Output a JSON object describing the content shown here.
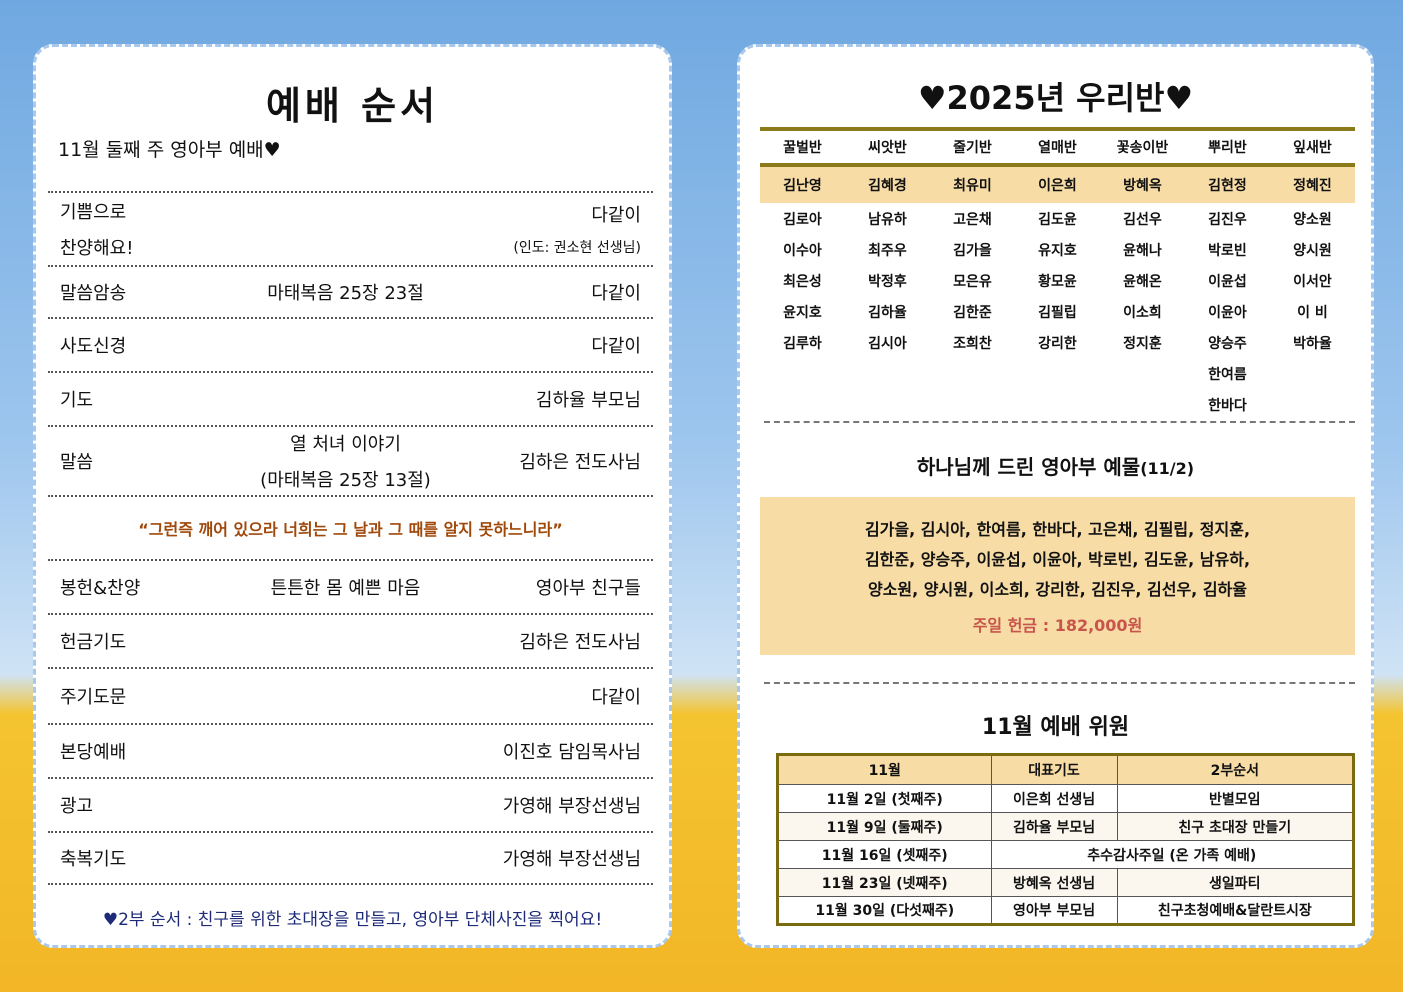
{
  "left": {
    "title": "예배 순서",
    "subtitle": "11월 둘째 주 영아부 예배♥",
    "rows": [
      {
        "label": "기쁨으로",
        "label2": "찬양해요!",
        "center": "",
        "right": "다같이",
        "right2": "(인도: 권소현 선생님)"
      },
      {
        "label": "말씀암송",
        "center": "마태복음 25장 23절",
        "right": "다같이"
      },
      {
        "label": "사도신경",
        "center": "",
        "right": "다같이"
      },
      {
        "label": "기도",
        "center": "",
        "right": "김하율 부모님"
      },
      {
        "label": "말씀",
        "center": "열 처녀 이야기",
        "center2": "(마태복음 25장 13절)",
        "right": "김하은 전도사님"
      },
      {
        "label": "봉헌&찬양",
        "center": "튼튼한 몸 예쁜 마음",
        "right": "영아부 친구들"
      },
      {
        "label": "헌금기도",
        "center": "",
        "right": "김하은 전도사님"
      },
      {
        "label": "주기도문",
        "center": "",
        "right": "다같이"
      },
      {
        "label": "본당예배",
        "center": "",
        "right": "이진호 담임목사님"
      },
      {
        "label": "광고",
        "center": "",
        "right": "가영해 부장선생님"
      },
      {
        "label": "축복기도",
        "center": "",
        "right": "가영해 부장선생님"
      }
    ],
    "quote": "“그런즉 깨어 있으라 너희는 그 날과 그 때를 알지 못하느니라”",
    "footer": "♥2부 순서 : 친구를 위한 초대장을 만들고, 영아부 단체사진을 찍어요!"
  },
  "right": {
    "title": "♥2025년 우리반♥",
    "classes": [
      "꿀벌반",
      "씨앗반",
      "줄기반",
      "열매반",
      "꽃송이반",
      "뿌리반",
      "잎새반"
    ],
    "teachers": [
      "김난영",
      "김혜경",
      "최유미",
      "이은희",
      "방혜옥",
      "김현정",
      "정혜진"
    ],
    "students": [
      [
        "김로아",
        "남유하",
        "고은채",
        "김도윤",
        "김선우",
        "김진우",
        "양소원"
      ],
      [
        "이수아",
        "최주우",
        "김가을",
        "유지호",
        "윤해나",
        "박로빈",
        "양시원"
      ],
      [
        "최은성",
        "박정후",
        "모은유",
        "황모윤",
        "윤해온",
        "이윤섭",
        "이서안"
      ],
      [
        "윤지호",
        "김하율",
        "김한준",
        "김필립",
        "이소희",
        "이윤아",
        "이 비"
      ],
      [
        "김루하",
        "김시아",
        "조희찬",
        "강리한",
        "정지훈",
        "양승주",
        "박하율"
      ],
      [
        "",
        "",
        "",
        "",
        "",
        "한여름",
        ""
      ],
      [
        "",
        "",
        "",
        "",
        "",
        "한바다",
        ""
      ]
    ],
    "offering": {
      "title": "하나님께 드린 영아부 예물",
      "date": "(11/2)",
      "lines": [
        "김가을, 김시아, 한여름, 한바다, 고은채, 김필립, 정지훈,",
        "김한준, 양승주, 이윤섭, 이윤아, 박로빈, 김도윤, 남유하,",
        "양소원, 양시원, 이소희, 강리한, 김진우, 김선우, 김하율"
      ],
      "money": "주일 헌금 : 182,000원",
      "money_color": "#c8554b"
    },
    "duty": {
      "title": "11월 예배 위원",
      "headers": [
        "11월",
        "대표기도",
        "2부순서"
      ],
      "rows": [
        [
          "11월 2일 (첫째주)",
          "이은희 선생님",
          "반별모임"
        ],
        [
          "11월 9일 (둘째주)",
          "김하율 부모님",
          "친구 초대장 만들기"
        ],
        [
          "11월 16일 (셋째주)",
          "추수감사주일 (온 가족 예배)"
        ],
        [
          "11월 23일 (넷째주)",
          "방혜옥 선생님",
          "생일파티"
        ],
        [
          "11월 30일 (다섯째주)",
          "영아부 부모님",
          "친구초청예배&달란트시장"
        ]
      ]
    }
  }
}
